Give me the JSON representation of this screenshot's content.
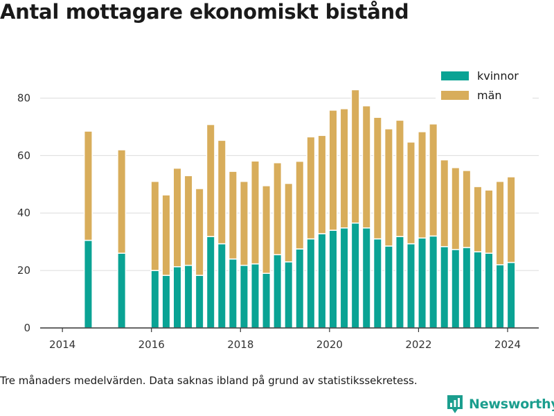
{
  "title": "Antal mottagare ekonomiskt bistånd",
  "footnote": "Tre månaders medelvärden. Data saknas ibland på grund av statistikssekretess.",
  "brand": {
    "name": "Newsworthy",
    "icon": "newsworthy-logo-icon",
    "color": "#1b9e8e"
  },
  "chart_data": {
    "type": "bar",
    "stacked": true,
    "xlim": [
      2013.5,
      2024.7
    ],
    "ylim": [
      0,
      90
    ],
    "x_ticks": [
      2014,
      2016,
      2018,
      2020,
      2022,
      2024
    ],
    "y_ticks": [
      0,
      20,
      40,
      60,
      80
    ],
    "grid": "horizontal",
    "legend_position": "top-right",
    "x": [
      2014.58,
      2015.33,
      2016.08,
      2016.33,
      2016.58,
      2016.83,
      2017.08,
      2017.33,
      2017.58,
      2017.83,
      2018.08,
      2018.33,
      2018.58,
      2018.83,
      2019.08,
      2019.33,
      2019.58,
      2019.83,
      2020.08,
      2020.33,
      2020.58,
      2020.83,
      2021.08,
      2021.33,
      2021.58,
      2021.83,
      2022.08,
      2022.33,
      2022.58,
      2022.83,
      2023.08,
      2023.33,
      2023.58,
      2023.83,
      2024.08
    ],
    "series": [
      {
        "name": "kvinnor",
        "color": "#0aa394",
        "values": [
          30.5,
          26,
          20,
          18.3,
          21.3,
          21.8,
          18.3,
          31.8,
          29.3,
          24,
          21.8,
          22.3,
          19,
          25.5,
          23,
          27.5,
          31,
          32.8,
          34,
          34.8,
          36.5,
          34.8,
          31,
          28.5,
          31.8,
          29.3,
          31.3,
          32,
          28.3,
          27.3,
          28,
          26.5,
          26,
          22,
          22.8
        ]
      },
      {
        "name": "män",
        "color": "#d8ad5b",
        "values": [
          38,
          36,
          31,
          28,
          34.3,
          31.2,
          30.2,
          39,
          36,
          30.5,
          29.2,
          35.8,
          30.5,
          32,
          27.3,
          30.5,
          35.5,
          34.2,
          41.8,
          41.5,
          46.4,
          42.5,
          42.3,
          40.8,
          40.5,
          35.4,
          37,
          39,
          30.2,
          28.5,
          26.8,
          22.7,
          22,
          29,
          29.8
        ]
      }
    ]
  }
}
